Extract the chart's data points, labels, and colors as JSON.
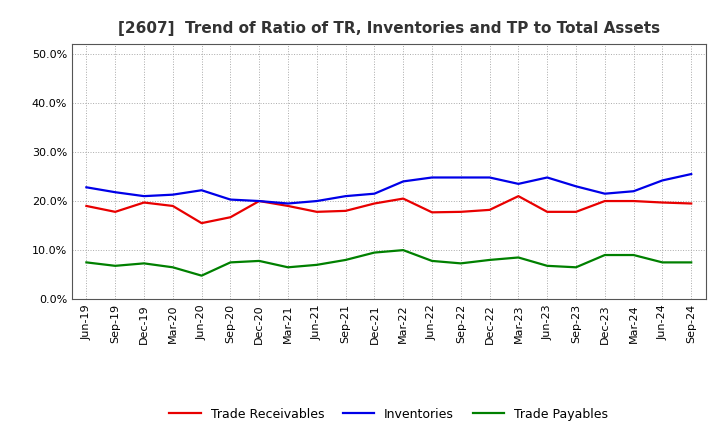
{
  "title": "[2607]  Trend of Ratio of TR, Inventories and TP to Total Assets",
  "x_labels": [
    "Jun-19",
    "Sep-19",
    "Dec-19",
    "Mar-20",
    "Jun-20",
    "Sep-20",
    "Dec-20",
    "Mar-21",
    "Jun-21",
    "Sep-21",
    "Dec-21",
    "Mar-22",
    "Jun-22",
    "Sep-22",
    "Dec-22",
    "Mar-23",
    "Jun-23",
    "Sep-23",
    "Dec-23",
    "Mar-24",
    "Jun-24",
    "Sep-24"
  ],
  "trade_receivables": [
    0.19,
    0.178,
    0.197,
    0.19,
    0.155,
    0.167,
    0.2,
    0.19,
    0.178,
    0.18,
    0.195,
    0.205,
    0.177,
    0.178,
    0.182,
    0.21,
    0.178,
    0.178,
    0.2,
    0.2,
    0.197,
    0.195
  ],
  "inventories": [
    0.228,
    0.218,
    0.21,
    0.213,
    0.222,
    0.203,
    0.2,
    0.195,
    0.2,
    0.21,
    0.215,
    0.24,
    0.248,
    0.248,
    0.248,
    0.235,
    0.248,
    0.23,
    0.215,
    0.22,
    0.242,
    0.255
  ],
  "trade_payables": [
    0.075,
    0.068,
    0.073,
    0.065,
    0.048,
    0.075,
    0.078,
    0.065,
    0.07,
    0.08,
    0.095,
    0.1,
    0.078,
    0.073,
    0.08,
    0.085,
    0.068,
    0.065,
    0.09,
    0.09,
    0.075,
    0.075
  ],
  "tr_color": "#e80000",
  "inv_color": "#0000e8",
  "tp_color": "#008000",
  "ylim": [
    0.0,
    0.52
  ],
  "yticks": [
    0.0,
    0.1,
    0.2,
    0.3,
    0.4,
    0.5
  ],
  "bg_color": "#ffffff",
  "grid_color": "#aaaaaa",
  "line_width": 1.6,
  "title_fontsize": 11,
  "tick_fontsize": 8,
  "legend_fontsize": 9
}
